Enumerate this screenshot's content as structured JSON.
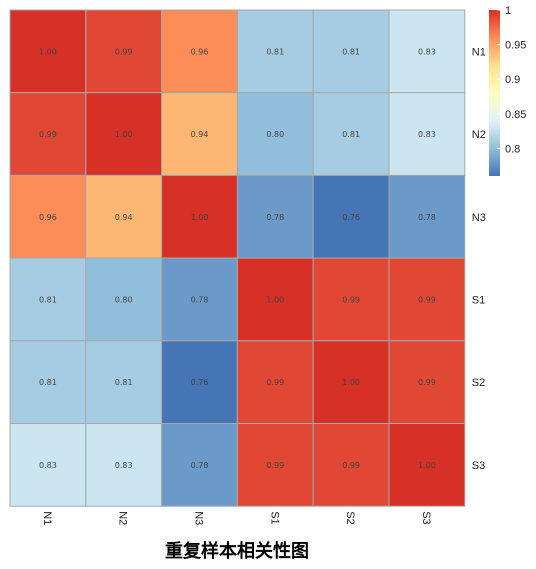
{
  "chart_data": {
    "type": "heatmap",
    "title": "重复样本相关性图",
    "rows": [
      "N1",
      "N2",
      "N3",
      "S1",
      "S2",
      "S3"
    ],
    "columns": [
      "N1",
      "N2",
      "N3",
      "S1",
      "S2",
      "S3"
    ],
    "values": [
      [
        1.0,
        0.99,
        0.96,
        0.81,
        0.81,
        0.83
      ],
      [
        0.99,
        1.0,
        0.94,
        0.8,
        0.81,
        0.83
      ],
      [
        0.96,
        0.94,
        1.0,
        0.78,
        0.76,
        0.78
      ],
      [
        0.81,
        0.8,
        0.78,
        1.0,
        0.99,
        0.99
      ],
      [
        0.81,
        0.81,
        0.76,
        0.99,
        1.0,
        0.99
      ],
      [
        0.83,
        0.83,
        0.78,
        0.99,
        0.99,
        1.0
      ]
    ],
    "cell_labels": [
      [
        "1.00",
        "0.99",
        "0.96",
        "0.81",
        "0.81",
        "0.83"
      ],
      [
        "0.99",
        "1.00",
        "0.94",
        "0.80",
        "0.81",
        "0.83"
      ],
      [
        "0.96",
        "0.94",
        "1.00",
        "0.78",
        "0.76",
        "0.78"
      ],
      [
        "0.81",
        "0.80",
        "0.78",
        "1.00",
        "0.99",
        "0.99"
      ],
      [
        "0.81",
        "0.81",
        "0.76",
        "0.99",
        "1.00",
        "0.99"
      ],
      [
        "0.83",
        "0.83",
        "0.78",
        "0.99",
        "0.99",
        "1.00"
      ]
    ],
    "value_range": [
      0.76,
      1.0
    ],
    "colorbar": {
      "ticks": [
        1,
        0.95,
        0.9,
        0.85,
        0.8
      ],
      "tick_labels": [
        "1",
        "0.95",
        "0.9",
        "0.85",
        "0.8"
      ]
    },
    "color_stops": [
      "#4575b4",
      "#91bfdb",
      "#e0f3f8",
      "#ffffbf",
      "#fee090",
      "#fc8d59",
      "#d73027"
    ],
    "row_labels_position": "right",
    "column_labels_position": "bottom",
    "column_labels_rotated": true,
    "legend_position": "top-right"
  }
}
